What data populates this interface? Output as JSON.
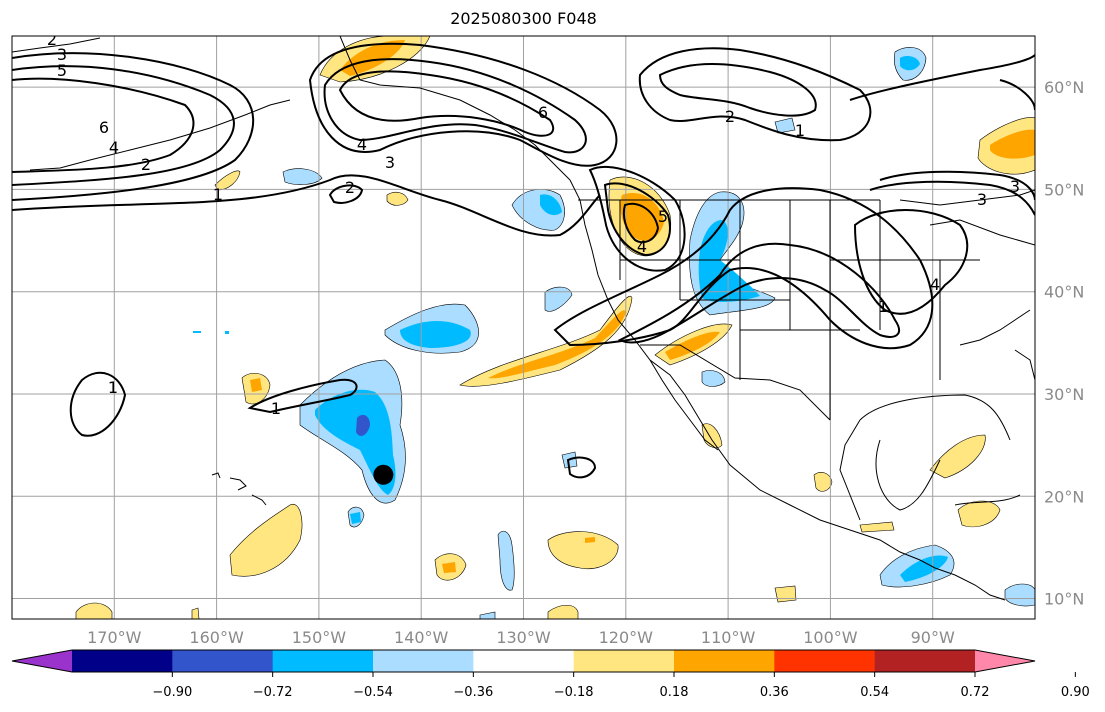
{
  "title": "2025080300 F048",
  "colors": {
    "land_line": "#000000",
    "grid": "#a0a0a0",
    "marker": "#000000"
  },
  "map": {
    "lon_labels": [
      "170°W",
      "160°W",
      "150°W",
      "140°W",
      "130°W",
      "120°W",
      "110°W",
      "100°W",
      "90°W"
    ],
    "lat_labels": [
      "60°N",
      "50°N",
      "40°N",
      "30°N",
      "20°N",
      "10°N"
    ],
    "lon_range": [
      -180,
      -80
    ],
    "lat_range": [
      8,
      65
    ],
    "marker": {
      "lon": -143.7,
      "lat": 22.1
    }
  },
  "colorbar": {
    "ticks": [
      "−0.90",
      "−0.72",
      "−0.54",
      "−0.36",
      "−0.18",
      "0.18",
      "0.36",
      "0.54",
      "0.72",
      "0.90"
    ],
    "colors": [
      "#9933cc",
      "#000088",
      "#3355cc",
      "#00bbff",
      "#aaddff",
      "#ffffff",
      "#ffe680",
      "#ffa500",
      "#ff3300",
      "#b22222",
      "#ff88aa"
    ],
    "extend": "both"
  },
  "contour_labels": [
    "2",
    "3",
    "5",
    "6",
    "4",
    "2",
    "1",
    "4",
    "3",
    "2",
    "6",
    "2",
    "1",
    "5",
    "4",
    "3",
    "3",
    "4",
    "1",
    "1",
    "1"
  ]
}
